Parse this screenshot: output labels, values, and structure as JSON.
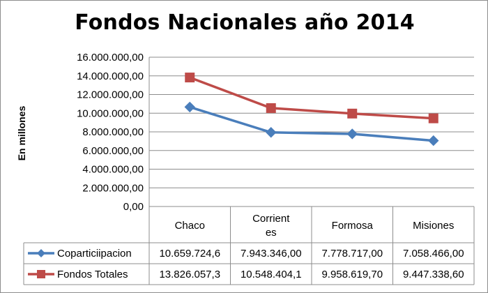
{
  "chart_data": {
    "type": "line",
    "title": "Fondos Nacionales año 2014",
    "ylabel": "En millones",
    "xlabel": "",
    "categories": [
      "Chaco",
      "Corrient\nes",
      "Formosa",
      "Misiones"
    ],
    "ylim": [
      0,
      16000000
    ],
    "yticks": [
      "0,00",
      "2.000.000,00",
      "4.000.000,00",
      "6.000.000,00",
      "8.000.000,00",
      "10.000.000,00",
      "12.000.000,00",
      "14.000.000,00",
      "16.000.000,00"
    ],
    "grid": true,
    "legend": "data-table",
    "series": [
      {
        "name": "Coparticiipacion",
        "color": "#4a7ebb",
        "marker": "diamond",
        "values": [
          10659724.6,
          7943346.0,
          7778717.0,
          7058466.0
        ],
        "table_values": [
          "10.659.724,6",
          "7.943.346,00",
          "7.778.717,00",
          "7.058.466,00"
        ]
      },
      {
        "name": "Fondos Totales",
        "color": "#be4b48",
        "marker": "square",
        "values": [
          13826057.3,
          10548404.1,
          9958619.7,
          9447338.6
        ],
        "table_values": [
          "13.826.057,3",
          "10.548.404,1",
          "9.958.619,70",
          "9.447.338,60"
        ]
      }
    ]
  }
}
